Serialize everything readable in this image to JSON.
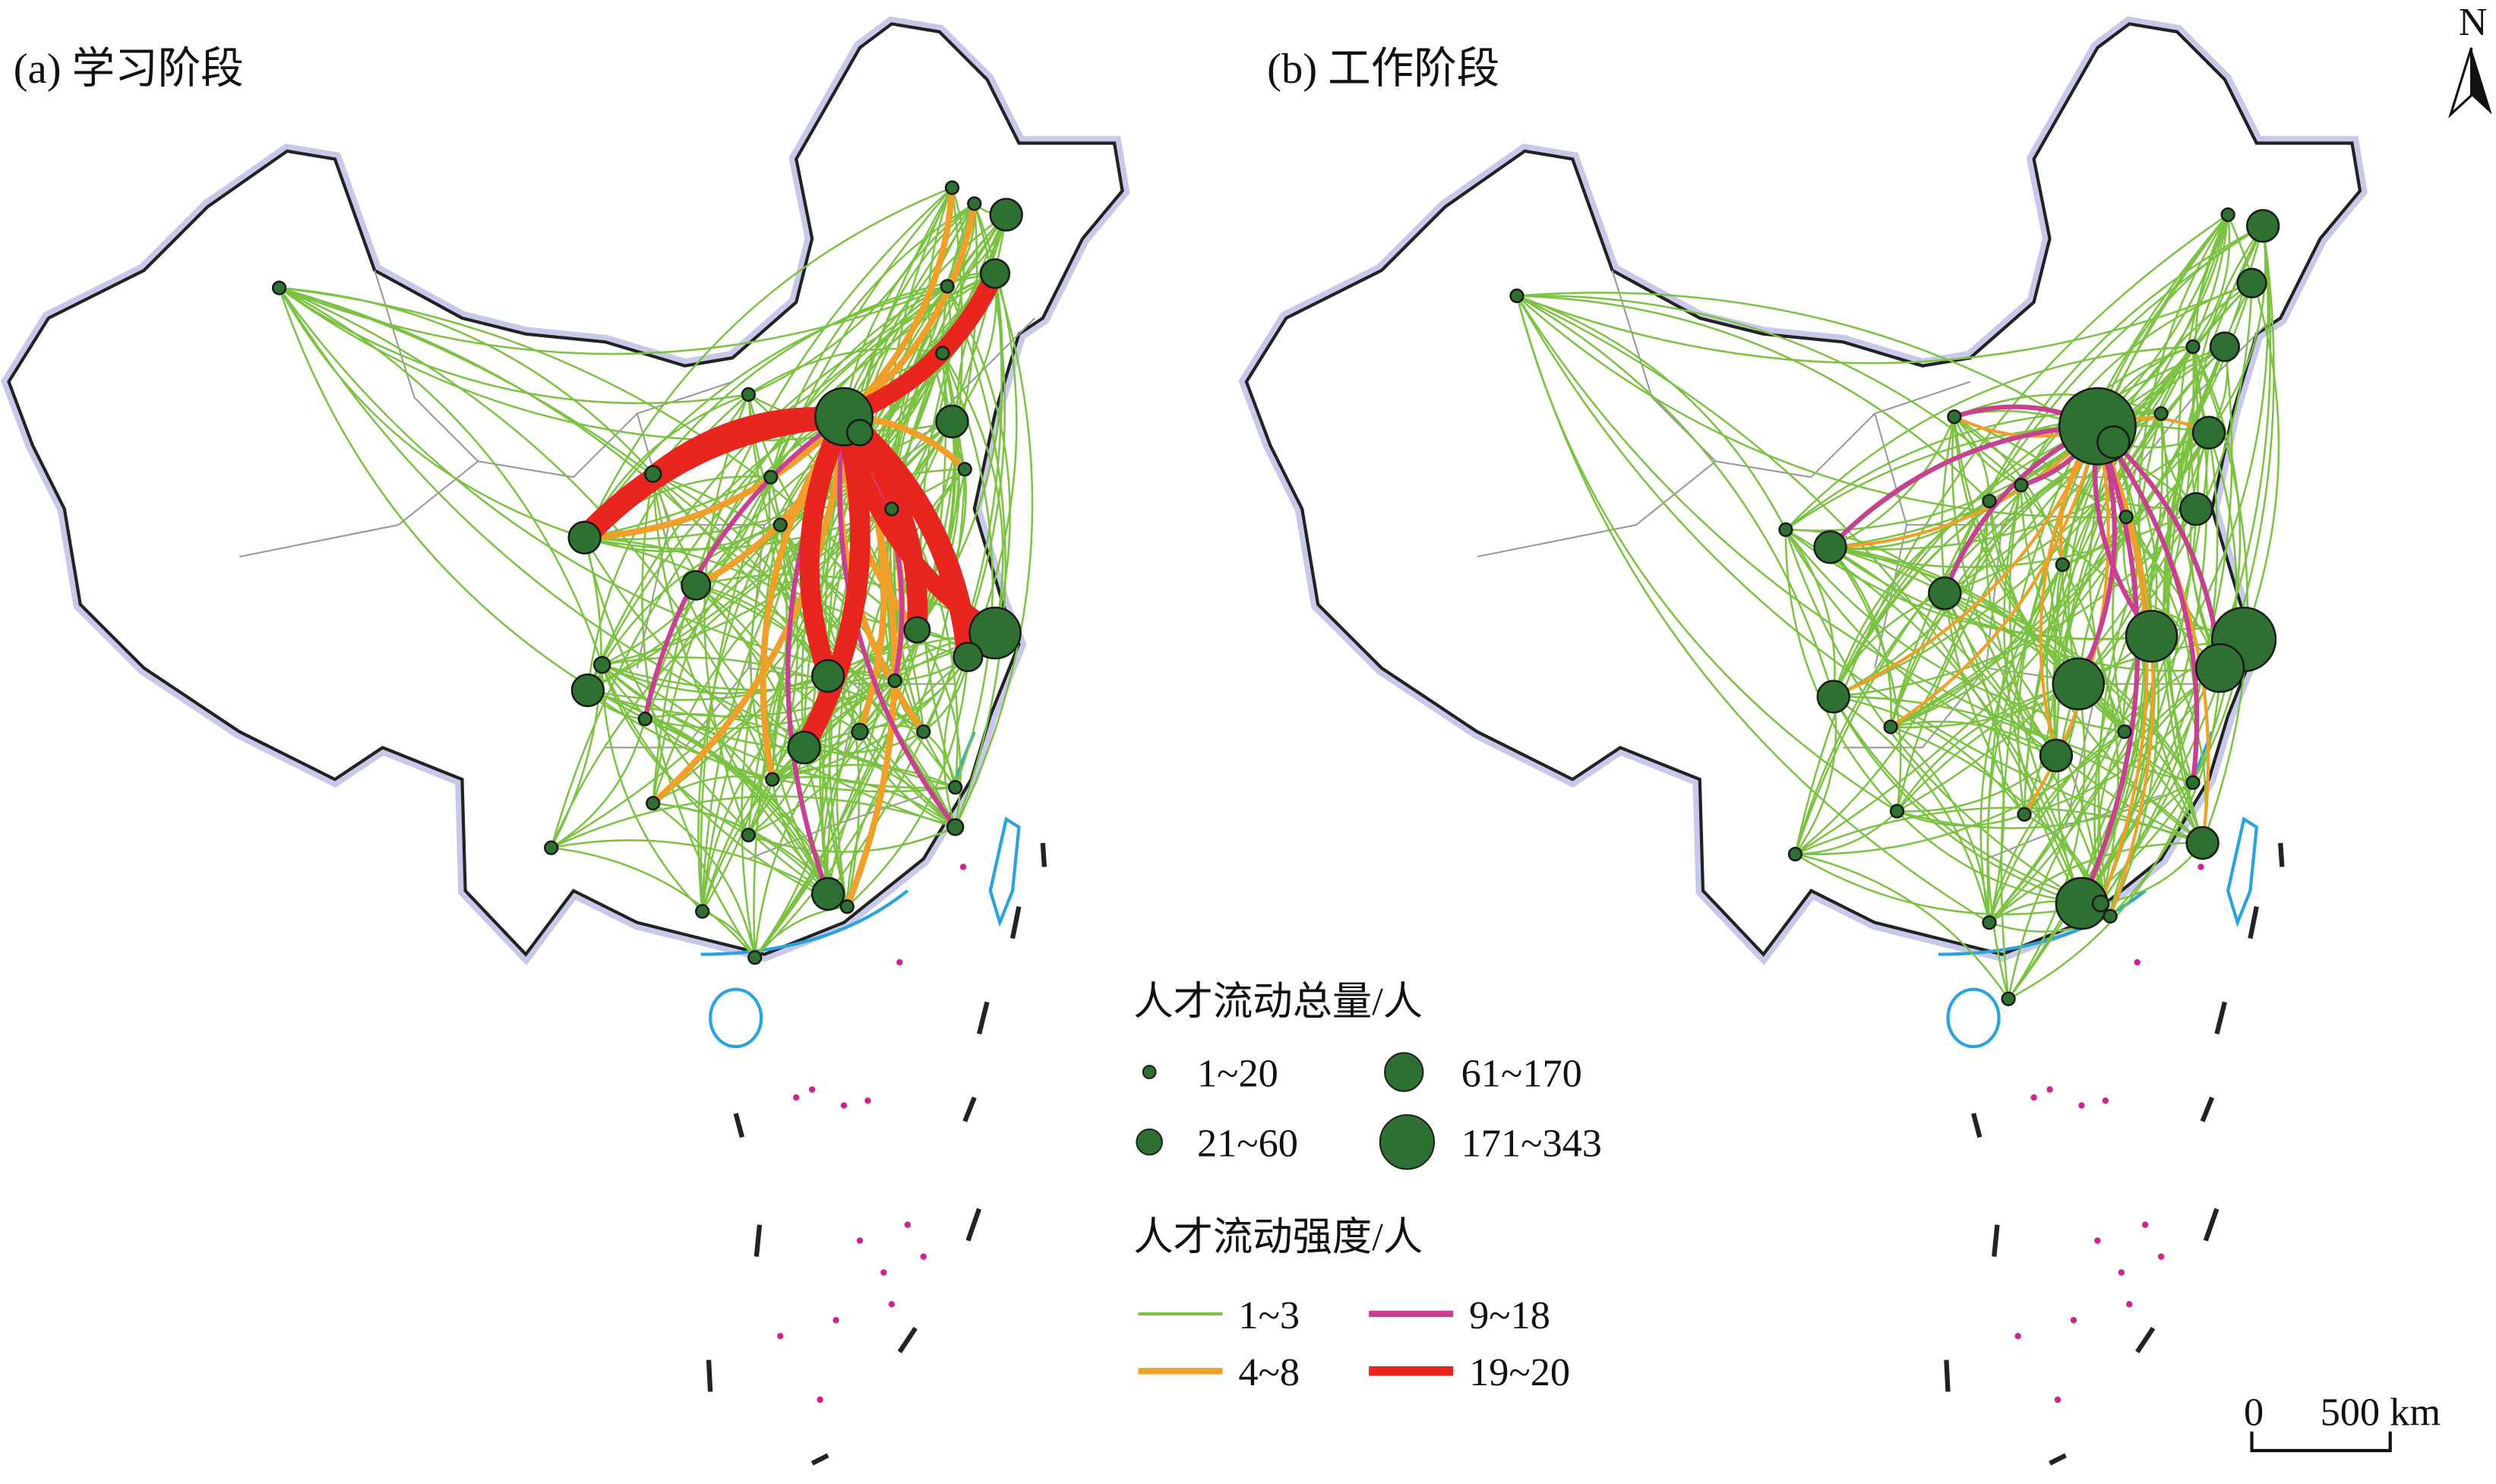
{
  "panels": [
    {
      "title": "(a) 学习阶段"
    },
    {
      "title": "(b) 工作阶段"
    }
  ],
  "legend": {
    "size_title": "人才流动总量/人",
    "size_items": [
      "1~20",
      "21~60",
      "61~170",
      "171~343"
    ],
    "flow_title": "人才流动强度/人",
    "flow_items": [
      "1~3",
      "4~8",
      "9~18",
      "19~20"
    ]
  },
  "north": "N",
  "scale": {
    "zero": "0",
    "length": "500 km"
  }
}
